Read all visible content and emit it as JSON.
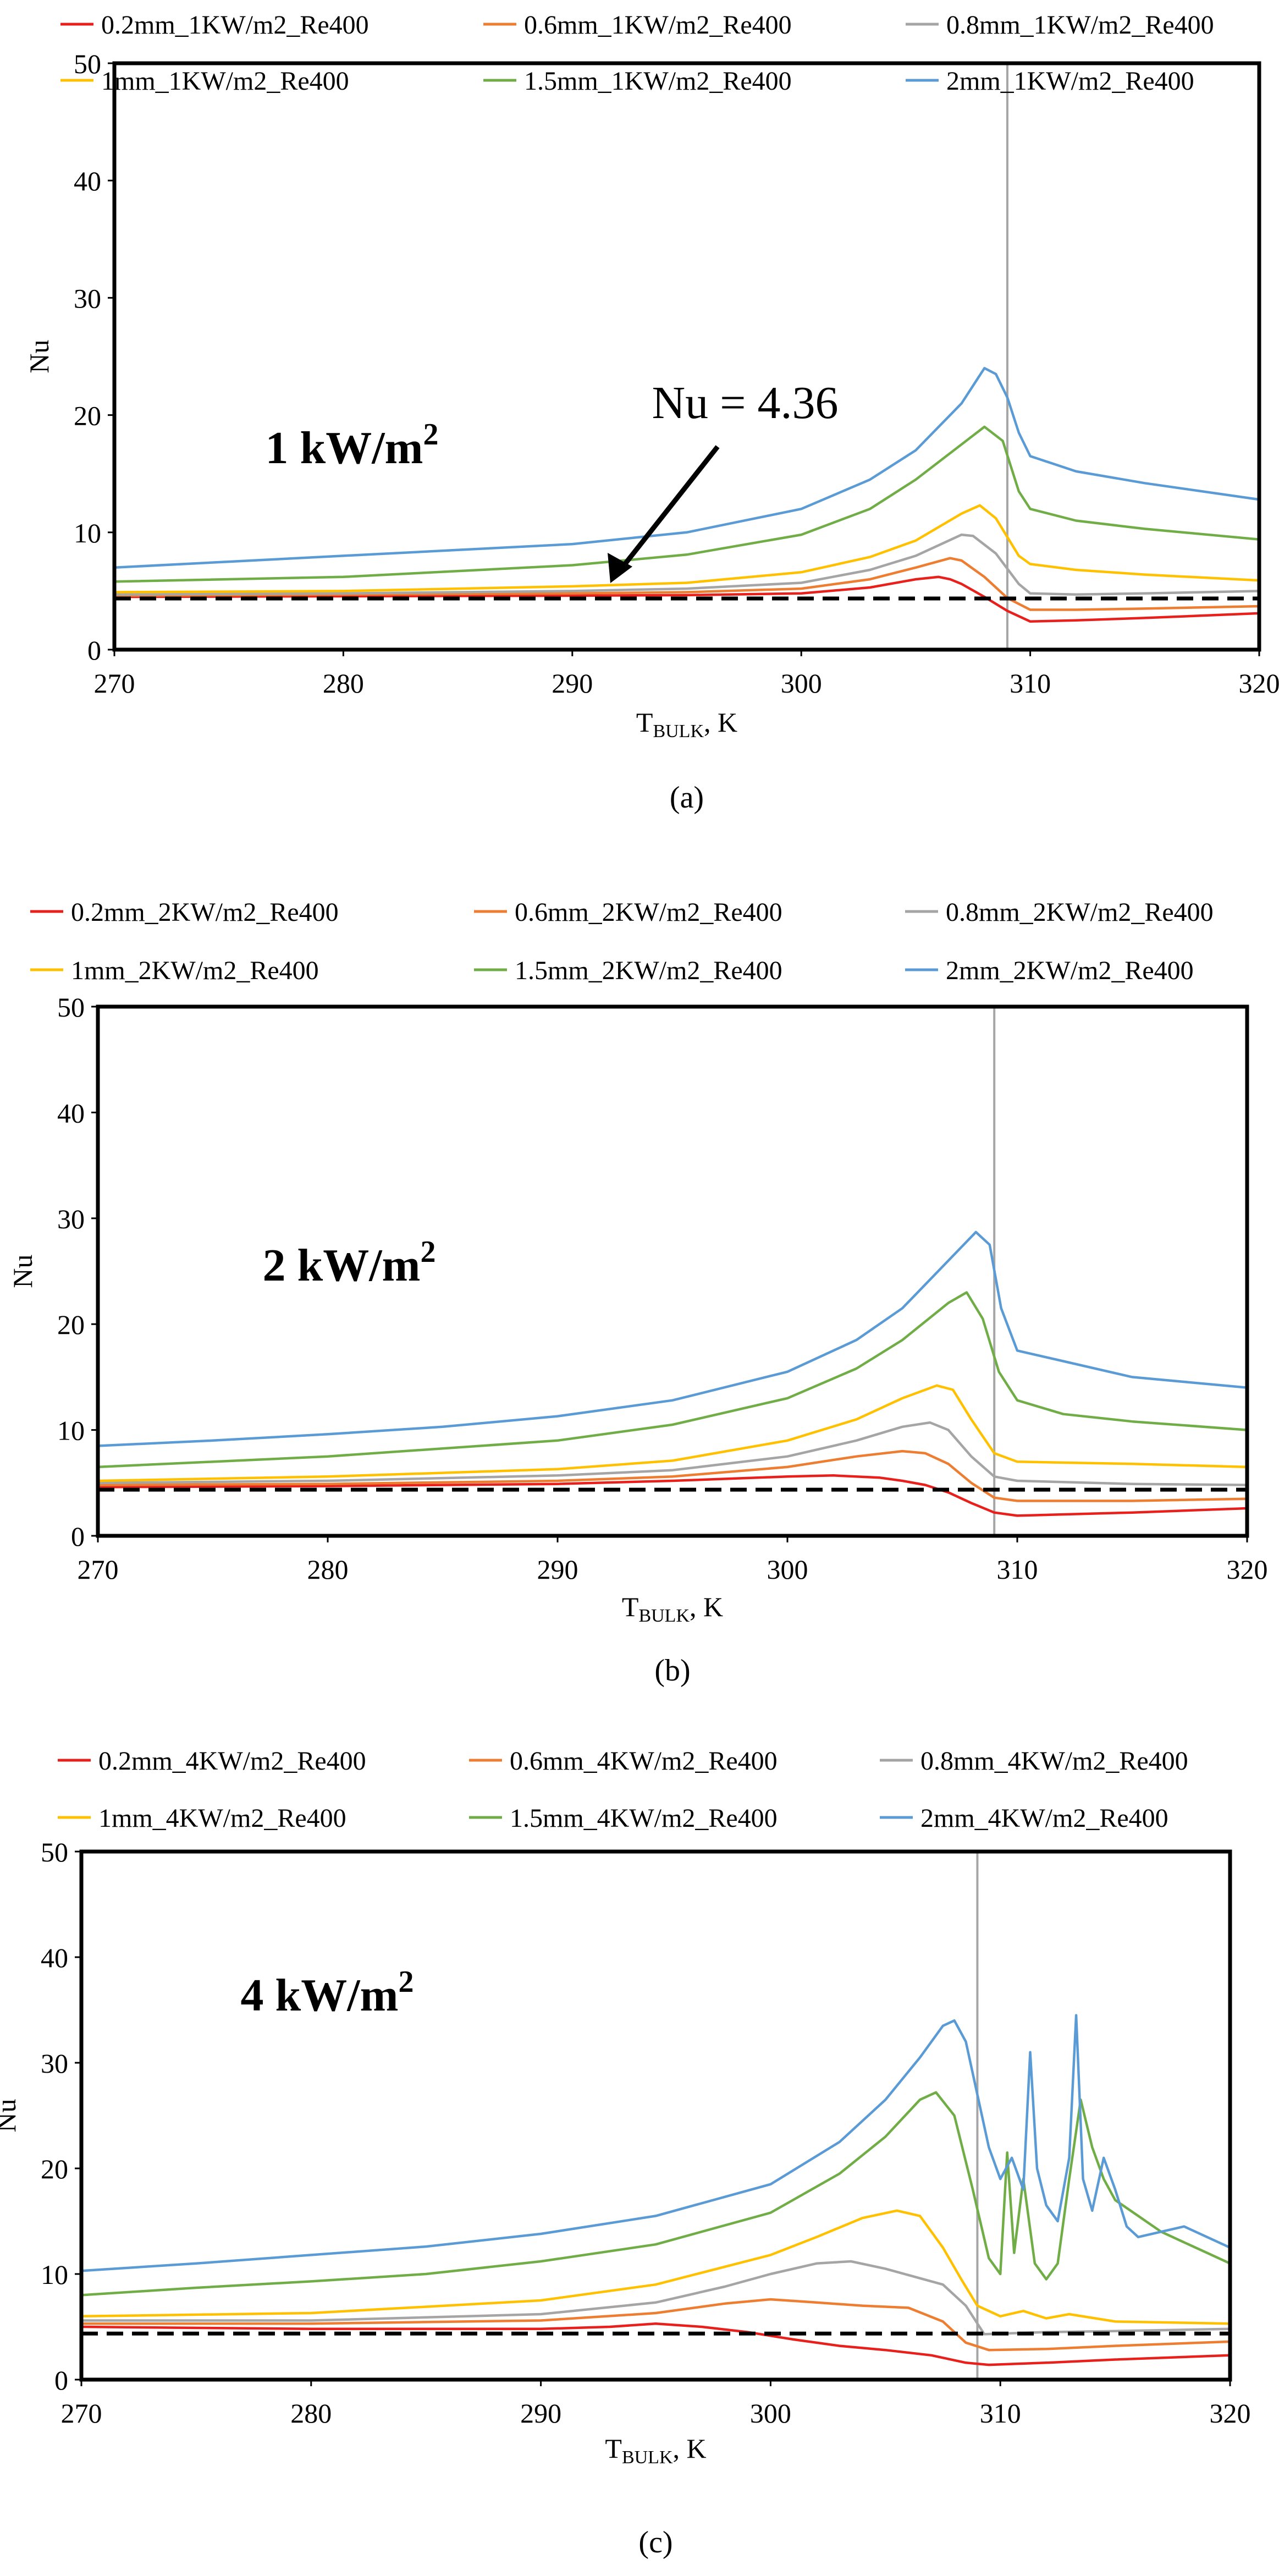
{
  "reference_line": {
    "label": "Nu = 4.36",
    "value": 4.36
  },
  "vertical_line_x": 309,
  "colors": {
    "0.2mm": "#e8201c",
    "0.6mm": "#ed7d31",
    "0.8mm": "#a5a5a5",
    "1mm": "#ffc000",
    "1.5mm": "#70ad47",
    "2mm": "#5b9bd5",
    "ref_line": "#000000",
    "vline": "#a6a6a6"
  },
  "chart_data": [
    {
      "type": "line",
      "panel_label": "(a)",
      "annotation": "1 kW/m",
      "annotation_sup": "2",
      "xlabel_main": "T",
      "xlabel_sub": "BULK",
      "xlabel_tail": ", K",
      "ylabel": "Nu",
      "xlim": [
        270,
        320
      ],
      "ylim": [
        0,
        50
      ],
      "xticks": [
        "270",
        "280",
        "290",
        "300",
        "310",
        "320"
      ],
      "yticks": [
        "0",
        "10",
        "20",
        "30",
        "40",
        "50"
      ],
      "legend_position": "top",
      "series": [
        {
          "name": "0.2mm_1KW/m2_Re400",
          "key": "0.2mm",
          "x": [
            270,
            280,
            290,
            295,
            300,
            303,
            305,
            306,
            306.5,
            307,
            308,
            309,
            310,
            312,
            315,
            320
          ],
          "y": [
            4.5,
            4.55,
            4.6,
            4.65,
            4.8,
            5.3,
            6.0,
            6.2,
            6.0,
            5.6,
            4.5,
            3.3,
            2.4,
            2.5,
            2.7,
            3.1
          ]
        },
        {
          "name": "0.6mm_1KW/m2_Re400",
          "key": "0.6mm",
          "x": [
            270,
            280,
            290,
            295,
            300,
            303,
            305,
            306.5,
            307,
            308,
            309,
            310,
            312,
            315,
            320
          ],
          "y": [
            4.6,
            4.7,
            4.8,
            4.9,
            5.2,
            6.0,
            7.0,
            7.8,
            7.6,
            6.2,
            4.4,
            3.4,
            3.4,
            3.5,
            3.7
          ]
        },
        {
          "name": "0.8mm_1KW/m2_Re400",
          "key": "0.8mm",
          "x": [
            270,
            280,
            290,
            295,
            300,
            303,
            305,
            307,
            307.5,
            308.5,
            309.5,
            310,
            312,
            315,
            320
          ],
          "y": [
            4.7,
            4.8,
            5.0,
            5.2,
            5.7,
            6.8,
            8.0,
            9.8,
            9.7,
            8.2,
            5.6,
            4.8,
            4.7,
            4.8,
            5.0
          ]
        },
        {
          "name": "1mm_1KW/m2_Re400",
          "key": "1mm",
          "x": [
            270,
            280,
            290,
            295,
            300,
            303,
            305,
            307,
            307.8,
            308.5,
            309.5,
            310,
            312,
            315,
            320
          ],
          "y": [
            4.9,
            5.0,
            5.4,
            5.7,
            6.6,
            7.9,
            9.3,
            11.6,
            12.3,
            11.2,
            8.0,
            7.3,
            6.8,
            6.4,
            5.9
          ]
        },
        {
          "name": "1.5mm_1KW/m2_Re400",
          "key": "1.5mm",
          "x": [
            270,
            280,
            290,
            295,
            300,
            303,
            305,
            307,
            308,
            308.8,
            309.5,
            310,
            312,
            315,
            320
          ],
          "y": [
            5.8,
            6.2,
            7.2,
            8.1,
            9.8,
            12.0,
            14.5,
            17.5,
            19.0,
            17.8,
            13.5,
            12.0,
            11.0,
            10.3,
            9.4
          ]
        },
        {
          "name": "2mm_1KW/m2_Re400",
          "key": "2mm",
          "x": [
            270,
            275,
            280,
            285,
            290,
            293,
            295,
            300,
            303,
            305,
            307,
            308,
            308.5,
            309,
            309.5,
            310,
            312,
            315,
            320
          ],
          "y": [
            7.0,
            7.5,
            8.0,
            8.5,
            9.0,
            9.6,
            10.0,
            12.0,
            14.5,
            17.0,
            21.0,
            24.0,
            23.5,
            21.5,
            18.5,
            16.5,
            15.2,
            14.2,
            12.8
          ]
        }
      ]
    },
    {
      "type": "line",
      "panel_label": "(b)",
      "annotation": "2 kW/m",
      "annotation_sup": "2",
      "xlabel_main": "T",
      "xlabel_sub": "BULK",
      "xlabel_tail": ", K",
      "ylabel": "Nu",
      "xlim": [
        270,
        320
      ],
      "ylim": [
        0,
        50
      ],
      "xticks": [
        "270",
        "280",
        "290",
        "300",
        "310",
        "320"
      ],
      "yticks": [
        "0",
        "10",
        "20",
        "30",
        "40",
        "50"
      ],
      "legend_position": "top",
      "series": [
        {
          "name": "0.2mm_2KW/m2_Re400",
          "key": "0.2mm",
          "x": [
            270,
            280,
            290,
            295,
            300,
            302,
            304,
            305,
            306,
            307,
            308,
            309,
            310,
            315,
            320
          ],
          "y": [
            4.6,
            4.7,
            4.9,
            5.2,
            5.6,
            5.7,
            5.5,
            5.2,
            4.8,
            4.1,
            3.1,
            2.2,
            1.9,
            2.2,
            2.6
          ]
        },
        {
          "name": "0.6mm_2KW/m2_Re400",
          "key": "0.6mm",
          "x": [
            270,
            280,
            290,
            295,
            300,
            303,
            305,
            306,
            307,
            308,
            309,
            310,
            315,
            320
          ],
          "y": [
            4.8,
            4.9,
            5.2,
            5.6,
            6.5,
            7.5,
            8.0,
            7.8,
            6.8,
            5.0,
            3.6,
            3.3,
            3.3,
            3.5
          ]
        },
        {
          "name": "0.8mm_2KW/m2_Re400",
          "key": "0.8mm",
          "x": [
            270,
            280,
            290,
            295,
            300,
            303,
            305,
            306.2,
            307,
            308,
            309,
            310,
            315,
            320
          ],
          "y": [
            5.0,
            5.2,
            5.7,
            6.2,
            7.5,
            9.0,
            10.3,
            10.7,
            10.0,
            7.5,
            5.6,
            5.2,
            4.9,
            4.8
          ]
        },
        {
          "name": "1mm_2KW/m2_Re400",
          "key": "1mm",
          "x": [
            270,
            280,
            290,
            295,
            300,
            303,
            305,
            306.5,
            307.2,
            308,
            309,
            310,
            315,
            320
          ],
          "y": [
            5.2,
            5.6,
            6.3,
            7.1,
            9.0,
            11.0,
            13.0,
            14.2,
            13.8,
            11.0,
            7.8,
            7.0,
            6.8,
            6.5
          ]
        },
        {
          "name": "1.5mm_2KW/m2_Re400",
          "key": "1.5mm",
          "x": [
            270,
            280,
            290,
            295,
            300,
            303,
            305,
            307,
            307.8,
            308.5,
            309.2,
            310,
            312,
            315,
            320
          ],
          "y": [
            6.5,
            7.5,
            9.0,
            10.5,
            13.0,
            15.8,
            18.5,
            22.0,
            23.0,
            20.5,
            15.5,
            12.8,
            11.5,
            10.8,
            10.0
          ]
        },
        {
          "name": "2mm_2KW/m2_Re400",
          "key": "2mm",
          "x": [
            270,
            275,
            280,
            285,
            290,
            295,
            300,
            303,
            305,
            307,
            308.2,
            308.8,
            309.3,
            310,
            312,
            315,
            320
          ],
          "y": [
            8.5,
            9.0,
            9.6,
            10.3,
            11.3,
            12.8,
            15.5,
            18.5,
            21.5,
            26.0,
            28.7,
            27.5,
            21.5,
            17.5,
            16.5,
            15.0,
            14.0
          ]
        }
      ]
    },
    {
      "type": "line",
      "panel_label": "(c)",
      "annotation": "4 kW/m",
      "annotation_sup": "2",
      "xlabel_main": "T",
      "xlabel_sub": "BULK",
      "xlabel_tail": ", K",
      "ylabel": "Nu",
      "xlim": [
        270,
        320
      ],
      "ylim": [
        0,
        50
      ],
      "xticks": [
        "270",
        "280",
        "290",
        "300",
        "310",
        "320"
      ],
      "yticks": [
        "0",
        "10",
        "20",
        "30",
        "40",
        "50"
      ],
      "legend_position": "top",
      "series": [
        {
          "name": "0.2mm_4KW/m2_Re400",
          "key": "0.2mm",
          "x": [
            270,
            280,
            290,
            293,
            295,
            297,
            299,
            301,
            303,
            305,
            307,
            308.5,
            309.5,
            312,
            315,
            320
          ],
          "y": [
            5.0,
            4.8,
            4.8,
            5.0,
            5.3,
            5.0,
            4.5,
            3.8,
            3.2,
            2.8,
            2.3,
            1.6,
            1.4,
            1.6,
            1.9,
            2.3
          ]
        },
        {
          "name": "0.6mm_4KW/m2_Re400",
          "key": "0.6mm",
          "x": [
            270,
            280,
            290,
            295,
            298,
            300,
            302,
            304,
            306,
            307.5,
            308.5,
            309.5,
            312,
            315,
            320
          ],
          "y": [
            5.3,
            5.3,
            5.6,
            6.3,
            7.2,
            7.6,
            7.3,
            7.0,
            6.8,
            5.5,
            3.5,
            2.8,
            2.9,
            3.2,
            3.6
          ]
        },
        {
          "name": "0.8mm_4KW/m2_Re400",
          "key": "0.8mm",
          "x": [
            270,
            280,
            290,
            295,
            298,
            300,
            302,
            303.5,
            305,
            306.5,
            307.5,
            308.5,
            309.3,
            312,
            315,
            320
          ],
          "y": [
            5.6,
            5.6,
            6.2,
            7.3,
            8.8,
            10.0,
            11.0,
            11.2,
            10.5,
            9.6,
            9.0,
            7.0,
            4.3,
            4.5,
            4.6,
            4.8
          ]
        },
        {
          "name": "1mm_4KW/m2_Re400",
          "key": "1mm",
          "x": [
            270,
            280,
            290,
            295,
            300,
            302,
            304,
            305.5,
            306.5,
            307.5,
            308.3,
            309,
            310,
            311,
            312,
            313,
            315,
            320
          ],
          "y": [
            6.0,
            6.3,
            7.5,
            9.0,
            11.8,
            13.5,
            15.3,
            16.0,
            15.5,
            12.5,
            9.5,
            7.0,
            6.0,
            6.5,
            5.8,
            6.2,
            5.5,
            5.3
          ]
        },
        {
          "name": "1.5mm_4KW/m2_Re400",
          "key": "1.5mm",
          "x": [
            270,
            275,
            280,
            285,
            290,
            295,
            300,
            303,
            305,
            306.5,
            307.2,
            308,
            308.8,
            309.5,
            310,
            310.3,
            310.6,
            311,
            311.5,
            312,
            312.5,
            313,
            313.5,
            314,
            314.5,
            315,
            316,
            317,
            318,
            319,
            320
          ],
          "y": [
            8.0,
            8.7,
            9.3,
            10.0,
            11.2,
            12.8,
            15.8,
            19.5,
            23.0,
            26.5,
            27.2,
            25.0,
            18.0,
            11.5,
            10.0,
            21.5,
            12.0,
            19.0,
            11.0,
            9.5,
            11.0,
            19.0,
            26.5,
            22.0,
            19.0,
            17.0,
            15.5,
            14.0,
            13.0,
            12.0,
            11.0
          ]
        },
        {
          "name": "2mm_4KW/m2_Re400",
          "key": "2mm",
          "x": [
            270,
            275,
            280,
            285,
            290,
            295,
            300,
            303,
            305,
            306.5,
            307.5,
            308,
            308.5,
            309,
            309.5,
            310,
            310.5,
            311,
            311.3,
            311.6,
            312,
            312.5,
            313,
            313.3,
            313.6,
            314,
            314.5,
            315,
            315.5,
            316,
            317,
            318,
            319,
            320
          ],
          "y": [
            10.3,
            11.0,
            11.8,
            12.6,
            13.8,
            15.5,
            18.5,
            22.5,
            26.5,
            30.5,
            33.5,
            34.0,
            32.0,
            27.0,
            22.0,
            19.0,
            21.0,
            18.0,
            31.0,
            20.0,
            16.5,
            15.0,
            21.0,
            34.5,
            19.0,
            16.0,
            21.0,
            18.0,
            14.5,
            13.5,
            14.0,
            14.5,
            13.5,
            12.5
          ]
        }
      ]
    }
  ]
}
